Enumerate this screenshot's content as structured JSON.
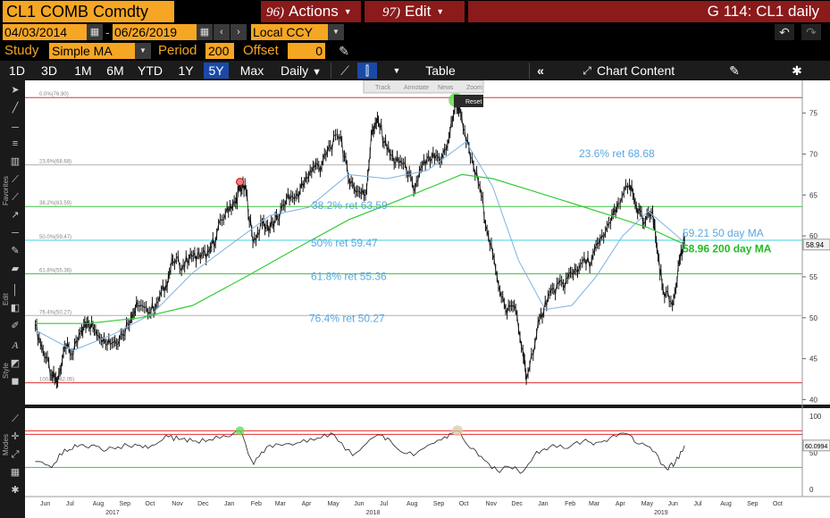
{
  "header": {
    "ticker": "CL1 COMB Comdty",
    "actions_num": "96)",
    "actions_label": "Actions",
    "edit_num": "97)",
    "edit_label": "Edit",
    "page_title": "G 114: CL1 daily"
  },
  "range": {
    "start_date": "04/03/2014",
    "end_date": "06/26/2019",
    "currency": "Local CCY"
  },
  "study": {
    "label": "Study",
    "value": "Simple MA",
    "period_label": "Period",
    "period_value": "200",
    "offset_label": "Offset",
    "offset_value": "0"
  },
  "toolbar": {
    "periods": [
      "1D",
      "3D",
      "1M",
      "6M",
      "YTD",
      "1Y",
      "5Y",
      "Max"
    ],
    "selected_period": "5Y",
    "frequency": "Daily",
    "table_label": "Table",
    "chart_content_label": "Chart Content"
  },
  "sidebar": {
    "favorites_label": "Favorites",
    "edit_label": "Edit",
    "style_label": "Style",
    "modes_label": "Modes"
  },
  "popup": {
    "track": "Track",
    "annotate": "Annotate",
    "news": "News",
    "zoom": "Zoom",
    "reset": "Reset"
  },
  "colors": {
    "accent_orange": "#f5a623",
    "header_red": "#8b1a1a",
    "fib_red": "#e03030",
    "fib_green": "#40c040",
    "fib_cyan": "#40d0e0",
    "fib_grey": "#b0b0b0",
    "ma50": "#7fb2e0",
    "ma200": "#33cc33",
    "label_blue": "#5aa7e0"
  },
  "chart_data": {
    "type": "line",
    "x_axis": {
      "months": [
        "Jun",
        "Jul",
        "Aug",
        "Sep",
        "Oct",
        "Nov",
        "Dec",
        "Jan",
        "Feb",
        "Mar",
        "Apr",
        "May",
        "Jun",
        "Jul",
        "Aug",
        "Sep",
        "Oct",
        "Nov",
        "Dec",
        "Jan",
        "Feb",
        "Mar",
        "Apr",
        "May",
        "Jun",
        "Jul",
        "Aug",
        "Sep",
        "Oct"
      ],
      "years": [
        "2017",
        "2018",
        "2019"
      ]
    },
    "y_axis": {
      "ticks": [
        40,
        45,
        50,
        55,
        60,
        65,
        70,
        75
      ],
      "range": [
        39.5,
        79
      ]
    },
    "fib_levels": [
      {
        "label": "0.0%(76.90)",
        "value": 76.9,
        "color": "#e03030"
      },
      {
        "label": "23.6%(68.68)",
        "value": 68.68,
        "color": "#b0b0b0"
      },
      {
        "label": "38.2%(63.59)",
        "value": 63.59,
        "color": "#40c040"
      },
      {
        "label": "50.0%(59.47)",
        "value": 59.47,
        "color": "#40d0e0"
      },
      {
        "label": "61.8%(55.36)",
        "value": 55.36,
        "color": "#40c040"
      },
      {
        "label": "76.4%(50.27)",
        "value": 50.27,
        "color": "#b0b0b0"
      },
      {
        "label": "100.0%(42.05)",
        "value": 42.05,
        "color": "#e03030"
      }
    ],
    "annotations": [
      {
        "text": "23.6% ret 68.68"
      },
      {
        "text": "38.2% ret 63.59"
      },
      {
        "text": "50% ret 59.47"
      },
      {
        "text": "61.8% ret 55.36"
      },
      {
        "text": "76.4% ret 50.27"
      }
    ],
    "ma_labels": [
      {
        "text": "59.21  50 day MA",
        "color": "#5aa7e0"
      },
      {
        "text": "58.96 200 day MA",
        "color": "#22bb22"
      }
    ],
    "last_price_label": "58.94",
    "price_series": {
      "name": "CL1 daily",
      "points": [
        [
          "2017-06-01",
          49.0
        ],
        [
          "2017-06-10",
          46.0
        ],
        [
          "2017-06-20",
          43.0
        ],
        [
          "2017-06-27",
          42.2
        ],
        [
          "2017-07-05",
          46.5
        ],
        [
          "2017-07-15",
          45.5
        ],
        [
          "2017-07-25",
          48.5
        ],
        [
          "2017-08-01",
          49.5
        ],
        [
          "2017-08-10",
          48.5
        ],
        [
          "2017-08-20",
          47.5
        ],
        [
          "2017-08-31",
          47.0
        ],
        [
          "2017-09-10",
          48.0
        ],
        [
          "2017-09-20",
          50.0
        ],
        [
          "2017-09-28",
          51.5
        ],
        [
          "2017-10-10",
          50.5
        ],
        [
          "2017-10-20",
          51.8
        ],
        [
          "2017-10-31",
          54.0
        ],
        [
          "2017-11-08",
          57.0
        ],
        [
          "2017-11-20",
          56.5
        ],
        [
          "2017-11-30",
          57.5
        ],
        [
          "2017-12-10",
          57.3
        ],
        [
          "2017-12-20",
          58.0
        ],
        [
          "2017-12-29",
          60.2
        ],
        [
          "2018-01-10",
          63.5
        ],
        [
          "2018-01-20",
          64.0
        ],
        [
          "2018-01-25",
          66.1
        ],
        [
          "2018-02-01",
          65.5
        ],
        [
          "2018-02-09",
          59.2
        ],
        [
          "2018-02-20",
          61.5
        ],
        [
          "2018-03-01",
          61.0
        ],
        [
          "2018-03-10",
          62.0
        ],
        [
          "2018-03-20",
          64.5
        ],
        [
          "2018-03-31",
          64.9
        ],
        [
          "2018-04-10",
          66.5
        ],
        [
          "2018-04-20",
          68.5
        ],
        [
          "2018-04-30",
          68.5
        ],
        [
          "2018-05-10",
          71.0
        ],
        [
          "2018-05-22",
          72.2
        ],
        [
          "2018-05-31",
          67.0
        ],
        [
          "2018-06-10",
          65.5
        ],
        [
          "2018-06-20",
          65.0
        ],
        [
          "2018-06-28",
          73.0
        ],
        [
          "2018-07-05",
          74.0
        ],
        [
          "2018-07-15",
          70.5
        ],
        [
          "2018-07-25",
          69.0
        ],
        [
          "2018-08-05",
          69.0
        ],
        [
          "2018-08-15",
          65.5
        ],
        [
          "2018-08-25",
          68.5
        ],
        [
          "2018-09-05",
          69.5
        ],
        [
          "2018-09-15",
          69.0
        ],
        [
          "2018-09-25",
          72.0
        ],
        [
          "2018-10-03",
          76.4
        ],
        [
          "2018-10-10",
          74.5
        ],
        [
          "2018-10-20",
          69.5
        ],
        [
          "2018-10-31",
          66.0
        ],
        [
          "2018-11-10",
          60.0
        ],
        [
          "2018-11-20",
          55.0
        ],
        [
          "2018-11-30",
          51.0
        ],
        [
          "2018-12-10",
          51.5
        ],
        [
          "2018-12-20",
          46.0
        ],
        [
          "2018-12-24",
          42.5
        ],
        [
          "2019-01-05",
          48.0
        ],
        [
          "2019-01-15",
          52.0
        ],
        [
          "2019-01-25",
          53.5
        ],
        [
          "2019-02-05",
          54.0
        ],
        [
          "2019-02-15",
          55.5
        ],
        [
          "2019-02-25",
          56.5
        ],
        [
          "2019-03-10",
          57.0
        ],
        [
          "2019-03-20",
          59.5
        ],
        [
          "2019-04-01",
          61.5
        ],
        [
          "2019-04-10",
          64.0
        ],
        [
          "2019-04-23",
          66.3
        ],
        [
          "2019-05-01",
          63.5
        ],
        [
          "2019-05-10",
          61.5
        ],
        [
          "2019-05-20",
          63.0
        ],
        [
          "2019-05-25",
          58.5
        ],
        [
          "2019-06-01",
          53.5
        ],
        [
          "2019-06-12",
          51.5
        ],
        [
          "2019-06-20",
          57.0
        ],
        [
          "2019-06-26",
          59.2
        ]
      ]
    },
    "ma50_series": {
      "points": [
        [
          "2017-06-01",
          48.5
        ],
        [
          "2017-07-15",
          46.0
        ],
        [
          "2017-08-31",
          48.0
        ],
        [
          "2017-10-15",
          50.5
        ],
        [
          "2017-12-01",
          55.5
        ],
        [
          "2018-01-15",
          59.0
        ],
        [
          "2018-03-01",
          62.5
        ],
        [
          "2018-04-15",
          63.5
        ],
        [
          "2018-05-31",
          67.5
        ],
        [
          "2018-07-15",
          67.0
        ],
        [
          "2018-08-31",
          68.0
        ],
        [
          "2018-10-15",
          71.5
        ],
        [
          "2018-11-15",
          66.0
        ],
        [
          "2018-12-15",
          57.0
        ],
        [
          "2019-01-15",
          51.0
        ],
        [
          "2019-02-15",
          51.5
        ],
        [
          "2019-03-15",
          55.0
        ],
        [
          "2019-04-15",
          60.0
        ],
        [
          "2019-05-15",
          63.0
        ],
        [
          "2019-06-26",
          59.21
        ]
      ]
    },
    "ma200_series": {
      "points": [
        [
          "2017-06-01",
          49.3
        ],
        [
          "2017-08-01",
          49.3
        ],
        [
          "2017-10-01",
          50.0
        ],
        [
          "2017-12-01",
          51.5
        ],
        [
          "2018-02-01",
          55.0
        ],
        [
          "2018-04-01",
          58.5
        ],
        [
          "2018-06-01",
          62.0
        ],
        [
          "2018-08-01",
          64.5
        ],
        [
          "2018-10-10",
          67.5
        ],
        [
          "2018-11-15",
          67.0
        ],
        [
          "2018-12-31",
          65.5
        ],
        [
          "2019-02-15",
          64.0
        ],
        [
          "2019-04-01",
          62.5
        ],
        [
          "2019-05-15",
          61.0
        ],
        [
          "2019-06-26",
          58.96
        ]
      ]
    },
    "oscillator": {
      "ticks": [
        0,
        50,
        100
      ],
      "range": [
        0,
        100
      ],
      "upper_level": 80,
      "lower_level": 30,
      "last_value_label": "60.0994",
      "points": [
        [
          "2017-06-01",
          38
        ],
        [
          "2017-06-20",
          30
        ],
        [
          "2017-07-05",
          55
        ],
        [
          "2017-07-20",
          58
        ],
        [
          "2017-08-05",
          60
        ],
        [
          "2017-08-20",
          52
        ],
        [
          "2017-09-05",
          58
        ],
        [
          "2017-09-25",
          62
        ],
        [
          "2017-10-10",
          56
        ],
        [
          "2017-10-31",
          74
        ],
        [
          "2017-11-15",
          68
        ],
        [
          "2017-12-01",
          66
        ],
        [
          "2017-12-20",
          68
        ],
        [
          "2018-01-10",
          72
        ],
        [
          "2018-01-25",
          80
        ],
        [
          "2018-02-10",
          34
        ],
        [
          "2018-02-25",
          58
        ],
        [
          "2018-03-15",
          60
        ],
        [
          "2018-04-05",
          64
        ],
        [
          "2018-04-25",
          70
        ],
        [
          "2018-05-15",
          74
        ],
        [
          "2018-06-05",
          46
        ],
        [
          "2018-06-25",
          68
        ],
        [
          "2018-07-10",
          74
        ],
        [
          "2018-07-25",
          58
        ],
        [
          "2018-08-15",
          46
        ],
        [
          "2018-08-31",
          60
        ],
        [
          "2018-09-20",
          72
        ],
        [
          "2018-10-05",
          80
        ],
        [
          "2018-10-20",
          56
        ],
        [
          "2018-11-05",
          40
        ],
        [
          "2018-11-20",
          26
        ],
        [
          "2018-12-05",
          30
        ],
        [
          "2018-12-20",
          24
        ],
        [
          "2019-01-05",
          52
        ],
        [
          "2019-01-20",
          58
        ],
        [
          "2019-02-10",
          56
        ],
        [
          "2019-02-28",
          66
        ],
        [
          "2019-03-15",
          64
        ],
        [
          "2019-03-31",
          70
        ],
        [
          "2019-04-20",
          76
        ],
        [
          "2019-05-05",
          62
        ],
        [
          "2019-05-20",
          52
        ],
        [
          "2019-06-05",
          28
        ],
        [
          "2019-06-15",
          36
        ],
        [
          "2019-06-26",
          60
        ]
      ]
    }
  }
}
